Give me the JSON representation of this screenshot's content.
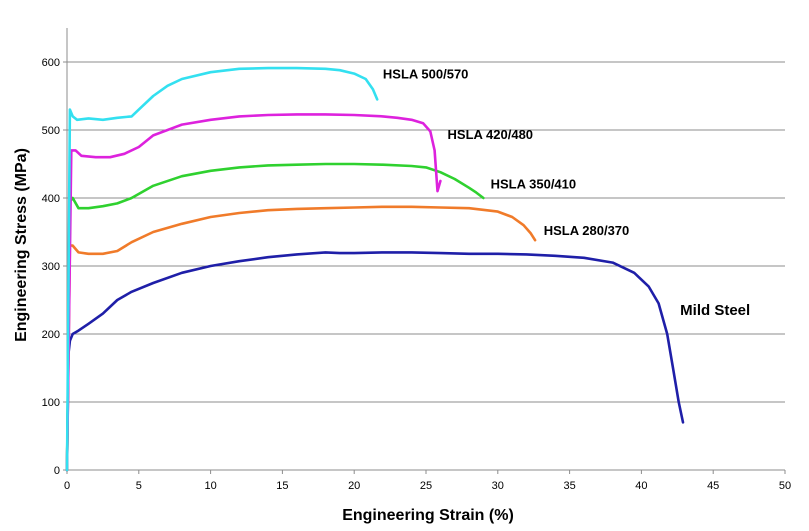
{
  "chart_data": {
    "type": "line",
    "title": "",
    "xlabel": "Engineering Strain (%)",
    "ylabel": "Engineering Stress (MPa)",
    "xlim": [
      0,
      50
    ],
    "ylim": [
      0,
      650
    ],
    "xticks": [
      0,
      5,
      10,
      15,
      20,
      25,
      30,
      35,
      40,
      45,
      50
    ],
    "yticks": [
      0,
      100,
      200,
      300,
      400,
      500,
      600
    ],
    "xtick_labels": [
      "0",
      "5",
      "10",
      "15",
      "20",
      "25",
      "30",
      "35",
      "40",
      "45",
      "50"
    ],
    "ytick_labels": [
      "0",
      "100",
      "200",
      "300",
      "400",
      "500",
      "600"
    ],
    "grid": "horizontal",
    "legend": "inline labels at curve ends",
    "series": [
      {
        "name": "Mild Steel",
        "color": "#1f1fa8",
        "x": [
          0,
          0.1,
          0.2,
          0.4,
          0.8,
          1.5,
          2.5,
          3.5,
          4.5,
          6,
          8,
          10,
          12,
          14,
          16,
          18,
          19,
          20,
          22,
          24,
          26,
          28,
          30,
          32,
          34,
          36,
          38,
          39.5,
          40.5,
          41.2,
          41.8,
          42.2,
          42.6,
          42.9
        ],
        "y": [
          0,
          170,
          190,
          200,
          205,
          215,
          230,
          250,
          262,
          275,
          290,
          300,
          307,
          313,
          317,
          320,
          319,
          319,
          320,
          320,
          319,
          318,
          318,
          317,
          315,
          312,
          305,
          290,
          270,
          245,
          200,
          150,
          100,
          70
        ]
      },
      {
        "name": "HSLA 280/370",
        "color": "#f07b2a",
        "x": [
          0,
          0.2,
          0.4,
          0.8,
          1.5,
          2.5,
          3.5,
          4.5,
          6,
          8,
          10,
          12,
          14,
          16,
          18,
          20,
          22,
          24,
          26,
          28,
          30,
          31,
          31.8,
          32.3,
          32.6
        ],
        "y": [
          0,
          330,
          330,
          320,
          318,
          318,
          322,
          335,
          350,
          362,
          372,
          378,
          382,
          384,
          385,
          386,
          387,
          387,
          386,
          385,
          380,
          372,
          360,
          348,
          338
        ]
      },
      {
        "name": "HSLA 350/410",
        "color": "#2fd12f",
        "x": [
          0,
          0.2,
          0.4,
          0.8,
          1.5,
          2.5,
          3.5,
          4.5,
          6,
          8,
          10,
          12,
          14,
          16,
          18,
          20,
          22,
          24,
          25,
          26,
          27,
          28,
          28.5,
          29
        ],
        "y": [
          0,
          395,
          400,
          385,
          385,
          388,
          392,
          400,
          418,
          432,
          440,
          445,
          448,
          449,
          450,
          450,
          449,
          447,
          445,
          438,
          428,
          415,
          408,
          400
        ]
      },
      {
        "name": "HSLA 420/480",
        "color": "#dd22dd",
        "x": [
          0,
          0.3,
          0.6,
          1,
          2,
          3,
          4,
          5,
          6,
          8,
          10,
          12,
          14,
          16,
          18,
          20,
          22,
          23,
          24,
          24.8,
          25.3,
          25.6,
          25.8,
          26
        ],
        "y": [
          0,
          470,
          470,
          462,
          460,
          460,
          465,
          475,
          492,
          508,
          515,
          520,
          522,
          523,
          523,
          522,
          520,
          518,
          515,
          510,
          498,
          470,
          410,
          425
        ]
      },
      {
        "name": "HSLA 500/570",
        "color": "#33e0f0",
        "x": [
          0,
          0.2,
          0.4,
          0.7,
          1.5,
          2.5,
          3.5,
          4.5,
          5,
          6,
          7,
          8,
          10,
          12,
          14,
          16,
          18,
          19,
          20,
          20.8,
          21.3,
          21.6
        ],
        "y": [
          0,
          530,
          520,
          515,
          517,
          515,
          518,
          520,
          530,
          550,
          565,
          575,
          585,
          590,
          591,
          591,
          590,
          588,
          583,
          575,
          560,
          545
        ]
      }
    ],
    "annotations": [
      {
        "text": "HSLA 500/570",
        "x": 22,
        "y": 583
      },
      {
        "text": "HSLA 420/480",
        "x": 26.5,
        "y": 494
      },
      {
        "text": "HSLA 350/410",
        "x": 29.5,
        "y": 421
      },
      {
        "text": "HSLA 280/370",
        "x": 33.2,
        "y": 353
      },
      {
        "text": "Mild Steel",
        "x": 42.7,
        "y": 235
      }
    ]
  }
}
